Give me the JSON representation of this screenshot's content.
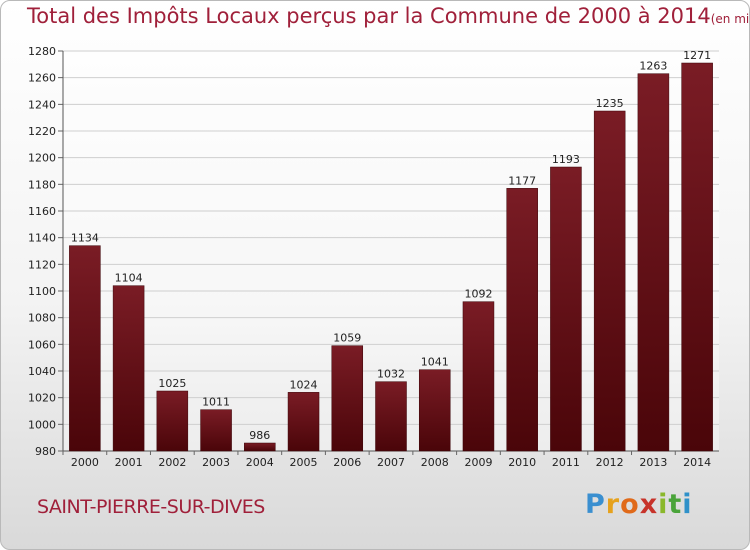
{
  "title": "Total des Impôts Locaux perçus par la Commune de 2000 à 2014",
  "subtitle": "(en milliers d'€)",
  "commune": "SAINT-PIERRE-SUR-DIVES",
  "logo": {
    "letters": [
      "P",
      "r",
      "o",
      "x",
      "i",
      "t",
      "i"
    ]
  },
  "colors": {
    "bar": "#7a1c25",
    "bar_dark": "#4a0509",
    "title": "#a0203a",
    "grid": "#cfcfcf"
  },
  "chart_data": {
    "type": "bar",
    "categories": [
      "2000",
      "2001",
      "2002",
      "2003",
      "2004",
      "2005",
      "2006",
      "2007",
      "2008",
      "2009",
      "2010",
      "2011",
      "2012",
      "2013",
      "2014"
    ],
    "values": [
      1134,
      1104,
      1025,
      1011,
      986,
      1024,
      1059,
      1032,
      1041,
      1092,
      1177,
      1193,
      1235,
      1263,
      1271
    ],
    "ylim": [
      980,
      1280
    ],
    "yticks": [
      980,
      1000,
      1020,
      1040,
      1060,
      1080,
      1100,
      1120,
      1140,
      1160,
      1180,
      1200,
      1220,
      1240,
      1260,
      1280
    ],
    "grid": true,
    "xlabel": "",
    "ylabel": ""
  }
}
